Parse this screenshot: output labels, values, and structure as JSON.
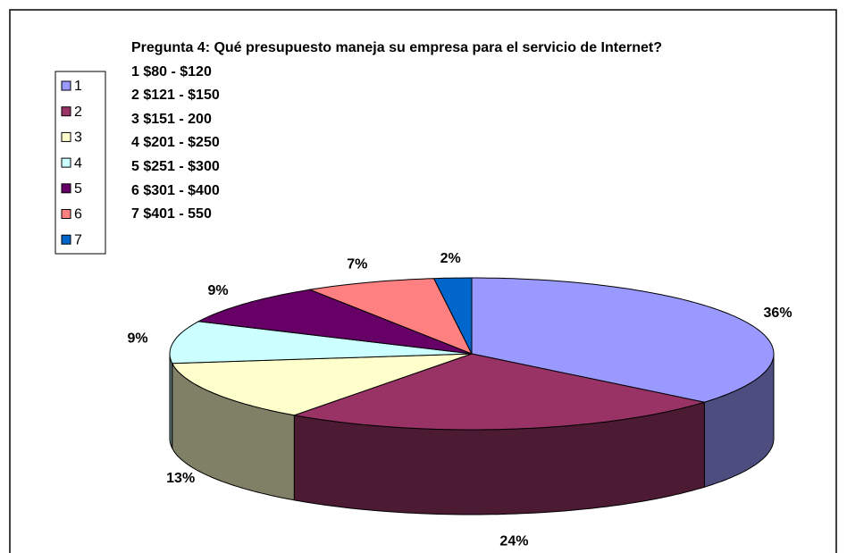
{
  "chart_data": {
    "type": "pie3d",
    "title": "Pregunta 4: Qué presupuesto maneja su empresa para el servicio de Internet?",
    "subtitle": [
      "1 $80 - $120",
      "2 $121 - $150",
      "3 $151 - 200",
      "4 $201 - $250",
      "5 $251 - $300",
      "6 $301 - $400",
      "7 $401 - 550"
    ],
    "categories": [
      "1",
      "2",
      "3",
      "4",
      "5",
      "6",
      "7"
    ],
    "values": [
      36,
      24,
      13,
      9,
      9,
      7,
      2
    ],
    "value_labels": [
      "36%",
      "24%",
      "13%",
      "9%",
      "9%",
      "7%",
      "2%"
    ],
    "colors": [
      "#9999ff",
      "#993366",
      "#ffffcc",
      "#ccffff",
      "#660066",
      "#ff8080",
      "#0066cc"
    ],
    "legend": "left"
  }
}
